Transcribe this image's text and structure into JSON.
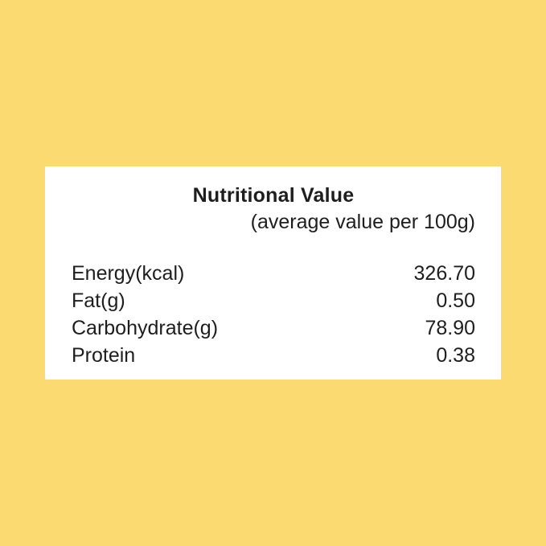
{
  "colors": {
    "background": "#FBDB71",
    "card_background": "#FFFFFF",
    "text": "#1E1E1E"
  },
  "card": {
    "title": "Nutritional Value",
    "subtitle": "(average value per 100g)",
    "rows": [
      {
        "label": "Energy(kcal)",
        "value": "326.70"
      },
      {
        "label": "Fat(g)",
        "value": "0.50"
      },
      {
        "label": "Carbohydrate(g)",
        "value": "78.90"
      },
      {
        "label": "Protein",
        "value": "0.38"
      }
    ]
  }
}
